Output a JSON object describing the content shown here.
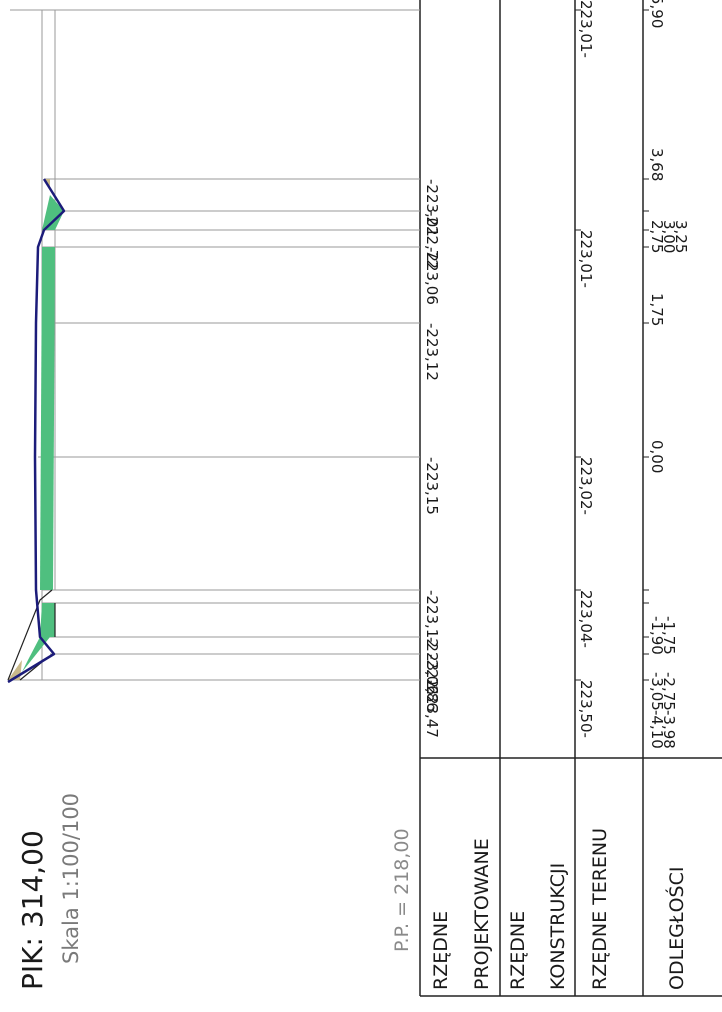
{
  "title": {
    "pik": "PIK: 314,00",
    "skala": "Skala 1:100/100",
    "pp": "P.P. = 218,00"
  },
  "table_headers": {
    "projektowane": [
      "RZĘDNE",
      "PROJEKTOWANE"
    ],
    "konstrukcji": [
      "RZĘDNE",
      "KONSTRUKCJI"
    ],
    "terenu": [
      "RZĘDNE TERENU"
    ],
    "odleglosci": [
      "ODLEGŁOŚCI"
    ]
  },
  "projected_elevations": [
    "-223,47",
    "-222,86",
    "-223,06",
    "-223,12",
    "-223,15",
    "-223,12",
    "-223,06",
    "-222,72",
    "-223,01"
  ],
  "terrain_elevations": [
    "223,50-",
    "223,04-",
    "223,02-",
    "223,01-",
    "223,01-"
  ],
  "distances": [
    "-4,10",
    "-3,98",
    "-3,05",
    "-2,75",
    "-1,90",
    "-1,75",
    "0,00",
    "1,75",
    "2,75",
    "3,00",
    "3,25",
    "3,68",
    "5,90"
  ],
  "colors": {
    "outline": "#1c1c7a",
    "fill_green": "#4fbf7f",
    "fill_tan": "#c9b98a",
    "grid": "#9a9a9a",
    "frame": "#222222"
  }
}
